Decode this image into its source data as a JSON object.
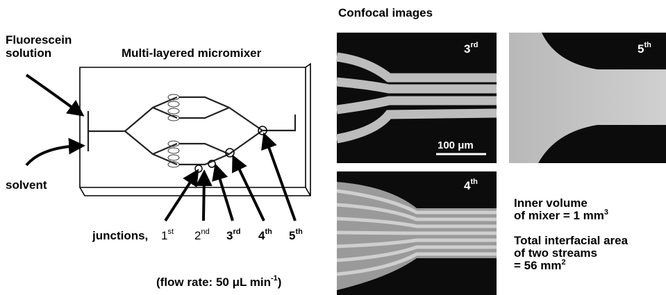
{
  "inlets": {
    "top": [
      "Fluorescein",
      "solution"
    ],
    "bottom": "solvent"
  },
  "device_title": "Multi-layered micromixer",
  "junctions": {
    "label": "junctions,",
    "items": [
      {
        "n": "1",
        "sup": "st"
      },
      {
        "n": "2",
        "sup": "nd"
      },
      {
        "n": "3",
        "sup": "rd"
      },
      {
        "n": "4",
        "sup": "th"
      },
      {
        "n": "5",
        "sup": "th"
      }
    ]
  },
  "flow_rate": {
    "prefix": "(flow rate: 50 μL min",
    "sup": "-1",
    "suffix": ")"
  },
  "images": {
    "title": "Confocal images",
    "panels": [
      {
        "n": "3",
        "sup": "rd"
      },
      {
        "n": "5",
        "sup": "th"
      },
      {
        "n": "4",
        "sup": "th"
      }
    ],
    "scale_bar": "100 μm"
  },
  "notes": [
    {
      "lines": [
        "Inner volume",
        "of mixer = 1 mm"
      ],
      "sup": "3"
    },
    {
      "lines": [
        "Total interfacial area",
        "of two streams",
        "= 56 mm"
      ],
      "sup": "2"
    }
  ]
}
